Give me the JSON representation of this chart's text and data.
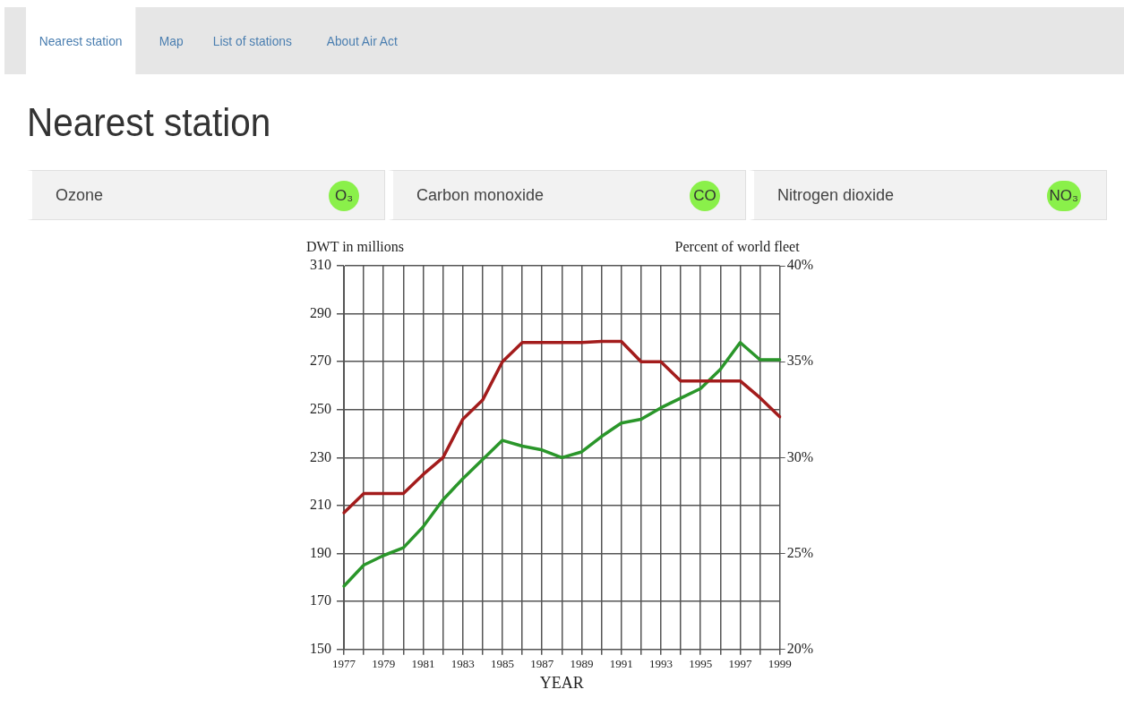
{
  "chart_data": [
    {
      "type": "other",
      "title": "Nearest station",
      "annotations": [
        "Nearest station",
        "Map",
        "List of stations",
        "About Air Act",
        "Ozone",
        "O₃",
        "Carbon monoxide",
        "CO",
        "Nitrogen dioxide",
        "NO₃"
      ]
    },
    {
      "type": "line",
      "xlabel": "YEAR",
      "ylabel": "DWT in millions",
      "y2label": "Percent of world fleet",
      "categories": [
        "1977",
        null,
        "1979",
        null,
        "1981",
        null,
        "1983",
        null,
        "1985",
        null,
        "1987",
        null,
        "1989",
        null,
        "1991",
        null,
        "1993",
        null,
        "1995",
        null,
        "1997",
        null,
        "1999"
      ],
      "series": [
        {
          "color": "#a31c1c",
          "values": [
            207,
            215,
            215,
            215,
            223,
            230,
            246,
            254,
            270,
            278,
            278,
            278,
            278,
            278.5,
            278.5,
            270,
            270,
            262,
            262,
            262,
            262,
            255,
            247
          ]
        },
        {
          "color": "#2a962a",
          "axis": "y2",
          "values": [
            23.3,
            24.4,
            24.9,
            25.3,
            26.4,
            27.8,
            28.9,
            29.9,
            30.9,
            30.6,
            30.4,
            30.0,
            30.3,
            31.1,
            31.8,
            32.0,
            32.6,
            33.1,
            33.6,
            34.6,
            36.0,
            35.1,
            35.1
          ]
        }
      ],
      "ylim": [
        150,
        310
      ],
      "yticks": [
        150,
        170,
        190,
        210,
        230,
        250,
        270,
        290,
        310
      ],
      "y2lim": [
        20,
        40
      ],
      "y2ticks": [
        {
          "value": 20,
          "label": "20%"
        },
        {
          "value": 25,
          "label": "25%"
        },
        {
          "value": 30,
          "label": "30%"
        },
        {
          "value": 35,
          "label": "35%"
        },
        {
          "value": 40,
          "label": "40%"
        }
      ],
      "grid": true,
      "legend": false,
      "marker": "none",
      "line_style": "solid"
    }
  ]
}
